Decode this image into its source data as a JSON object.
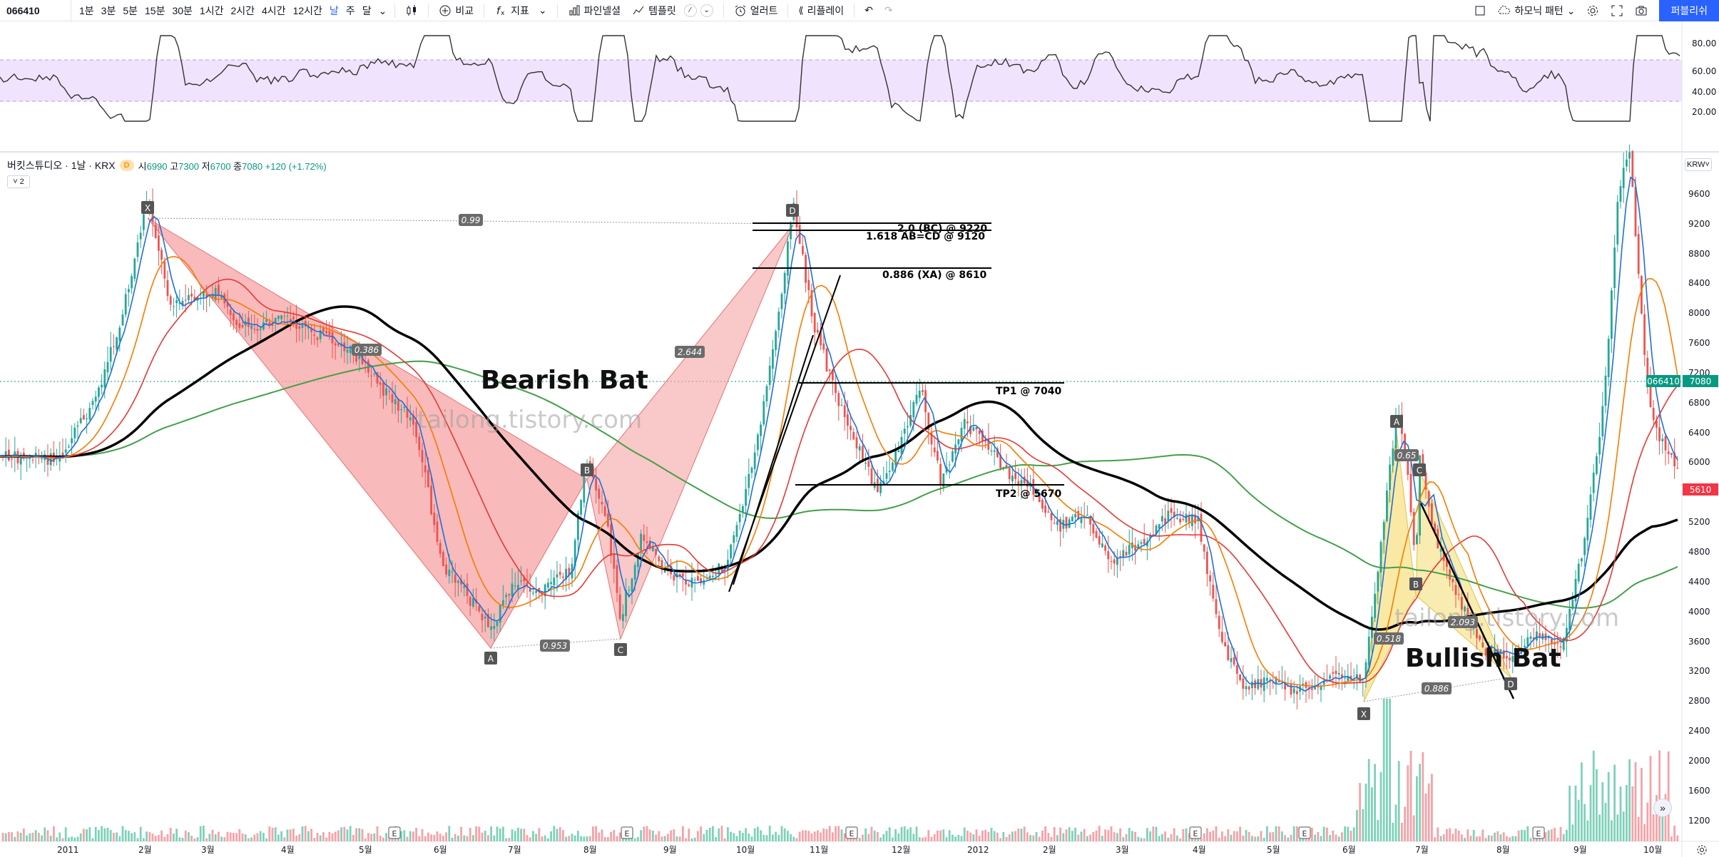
{
  "toolbar": {
    "symbol": "066410",
    "timeframes": [
      "1분",
      "3분",
      "5분",
      "15분",
      "30분",
      "1시간",
      "2시간",
      "4시간",
      "12시간",
      "날",
      "주",
      "달"
    ],
    "active_timeframe": "날",
    "compare_label": "비교",
    "indicators_label": "지표",
    "pine_label": "파인넬셜",
    "templates_label": "템플릿",
    "alert_label": "얼러트",
    "replay_label": "리플레이",
    "harmonic_label": "하모닉 패턴",
    "publish_label": "퍼블리쉬"
  },
  "legend": {
    "title": "버킷스튜디오 · 1날 · KRX",
    "badge": "D",
    "open_k": "시",
    "open": "6990",
    "high_k": "고",
    "high": "7300",
    "low_k": "저",
    "low": "6700",
    "close_k": "종",
    "close": "7080",
    "change": "+120 (+1.72%)",
    "collapse": "˅ 2",
    "currency": "KRW˅"
  },
  "rsi_axis": [
    "80.00",
    "60.00",
    "40.00",
    "20.00"
  ],
  "price_axis": [
    "9600",
    "9200",
    "8800",
    "8400",
    "8000",
    "7600",
    "7200",
    "6800",
    "6400",
    "6000",
    "5600",
    "5200",
    "4800",
    "4400",
    "4000",
    "3600",
    "3200",
    "2800",
    "2400",
    "2000",
    "1600",
    "1200"
  ],
  "price_tags": {
    "symbol": "066410",
    "last": "7080",
    "red": "5610"
  },
  "time_axis": [
    "2011",
    "2월",
    "3월",
    "4월",
    "5월",
    "6월",
    "7월",
    "8월",
    "9월",
    "10월",
    "11월",
    "12월",
    "2012",
    "2월",
    "3월",
    "4월",
    "5월",
    "6월",
    "7월",
    "8월",
    "9월",
    "10월"
  ],
  "annotations": {
    "bearish": "Bearish Bat",
    "bullish": "Bullish Bat",
    "watermark": "tailong.tistory.com",
    "tp1": "TP1 @ 7040",
    "tp2": "TP2 @ 5670",
    "bc": "2.0 (BC) @ 9220",
    "abcd": "1.618 AB=CD @ 9120",
    "xa": "0.886 (XA) @ 8610",
    "r1": "0.99",
    "r2": "0.386",
    "r3": "2.644",
    "r4": "0.953",
    "r5": "0.65",
    "r6": "0.518",
    "r7": "2.093",
    "r8": "0.886",
    "earnings": "E",
    "points": {
      "X": "X",
      "A": "A",
      "B": "B",
      "C": "C",
      "D": "D"
    }
  },
  "colors": {
    "up": "#26a69a",
    "down": "#ef5350",
    "bearish_fill": "#f5a3a3",
    "bullish_fill": "#f7e48f",
    "rsi_band": "#f0e3fd",
    "accent": "#2962ff"
  }
}
